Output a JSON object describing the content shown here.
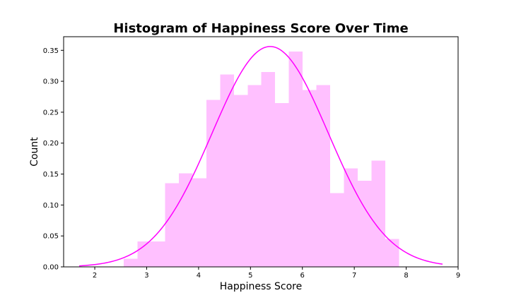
{
  "chart_data": {
    "type": "bar",
    "subtype": "histogram-with-density-curve",
    "title": "Histogram of Happiness Score Over Time",
    "xlabel": "Happiness Score",
    "ylabel": "Count",
    "xlim": [
      1.4,
      9.0
    ],
    "ylim": [
      0,
      0.372
    ],
    "xticks": [
      2,
      3,
      4,
      5,
      6,
      7,
      8,
      9
    ],
    "xtick_labels": [
      "2",
      "3",
      "4",
      "5",
      "6",
      "7",
      "8",
      "9"
    ],
    "yticks": [
      0,
      0.05,
      0.1,
      0.15,
      0.2,
      0.25,
      0.3,
      0.35
    ],
    "ytick_labels": [
      "0.00",
      "0.05",
      "0.10",
      "0.15",
      "0.20",
      "0.25",
      "0.30",
      "0.35"
    ],
    "grid": false,
    "legend": "none",
    "bar_color": "#ffc0ff",
    "curve_color": "#ff00ff",
    "bin_edges": [
      2.56,
      2.825,
      3.09,
      3.355,
      3.62,
      3.885,
      4.15,
      4.415,
      4.68,
      4.945,
      5.21,
      5.475,
      5.74,
      6.005,
      6.27,
      6.535,
      6.8,
      7.065,
      7.33,
      7.595,
      7.86
    ],
    "values": [
      0.013,
      0.041,
      0.041,
      0.135,
      0.151,
      0.143,
      0.27,
      0.311,
      0.278,
      0.294,
      0.315,
      0.265,
      0.348,
      0.286,
      0.294,
      0.119,
      0.159,
      0.139,
      0.172,
      0.045
    ],
    "curve": {
      "type": "normal-pdf",
      "mean": 5.38,
      "std": 1.12,
      "x_range": [
        1.7,
        8.7
      ]
    }
  }
}
